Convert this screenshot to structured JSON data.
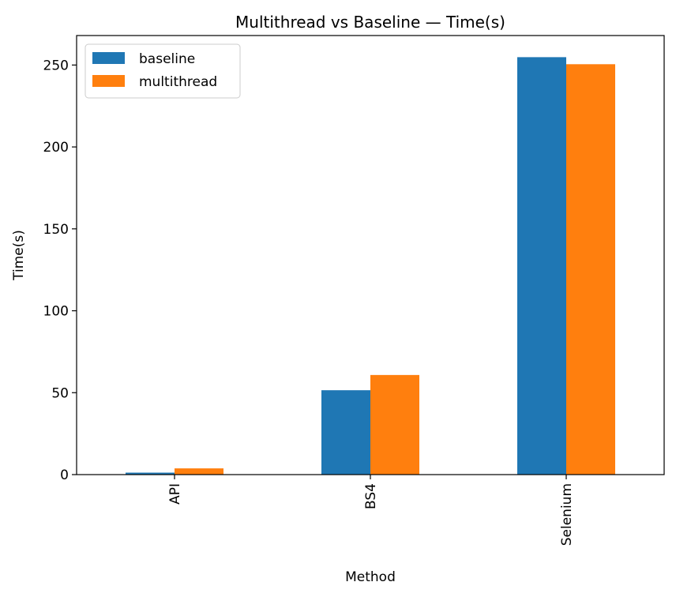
{
  "chart_data": {
    "type": "bar",
    "title": "Multithread vs Baseline — Time(s)",
    "xlabel": "Method",
    "ylabel": "Time(s)",
    "categories": [
      "API",
      "BS4",
      "Selenium"
    ],
    "series": [
      {
        "name": "baseline",
        "color": "#1f77b4",
        "values": [
          1.2,
          51.5,
          254.8
        ]
      },
      {
        "name": "multithread",
        "color": "#ff7f0e",
        "values": [
          3.8,
          60.8,
          250.5
        ]
      }
    ],
    "ylim": [
      0,
      268
    ],
    "yticks": [
      0,
      50,
      100,
      150,
      200,
      250
    ],
    "grid": false,
    "legend_position": "top-left"
  }
}
